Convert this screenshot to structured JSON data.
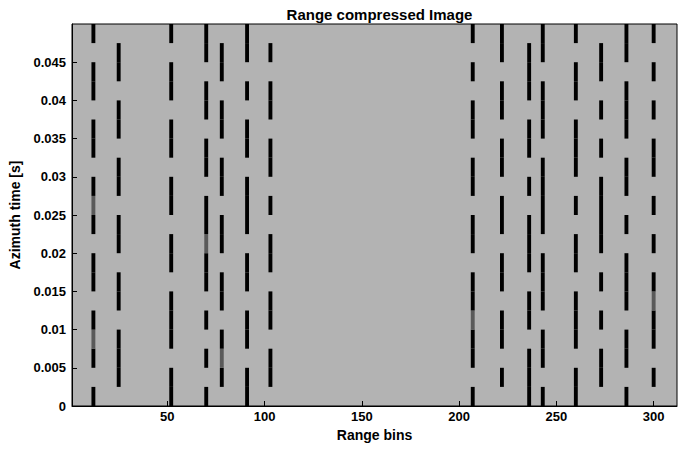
{
  "chart_data": {
    "type": "heatmap",
    "title": "Range compressed Image",
    "xlabel": "Range bins",
    "ylabel": "Azimuth time [s]",
    "xlim": [
      1,
      312
    ],
    "xticks": [
      50,
      100,
      150,
      200,
      250,
      300
    ],
    "ylim": [
      0,
      0.05
    ],
    "yticks": [
      0,
      0.005,
      0.01,
      0.015,
      0.02,
      0.025,
      0.03,
      0.035,
      0.04,
      0.045
    ],
    "x": [
      12,
      25,
      52,
      70,
      78,
      91,
      103,
      207,
      222,
      236,
      243,
      260,
      273,
      286,
      300
    ],
    "y": [
      0,
      0.0025,
      0.005,
      0.0075,
      0.01,
      0.0125,
      0.015,
      0.0175,
      0.02,
      0.0225,
      0.025,
      0.0275,
      0.03,
      0.0325,
      0.035,
      0.0375,
      0.04,
      0.0425,
      0.045,
      0.0475
    ],
    "values": [
      [
        1,
        0,
        1,
        1,
        0,
        1,
        0,
        1,
        0,
        1,
        1,
        1,
        0,
        1,
        0
      ],
      [
        0,
        1,
        1,
        0,
        1,
        1,
        1,
        0,
        1,
        1,
        0,
        1,
        1,
        0,
        1
      ],
      [
        1,
        1,
        0,
        1,
        0.5,
        0,
        1,
        1,
        0,
        1,
        1,
        0,
        1,
        1,
        0
      ],
      [
        0.5,
        1,
        1,
        0,
        1,
        1,
        0,
        1,
        1,
        0,
        1,
        1,
        0,
        1,
        1
      ],
      [
        1,
        0,
        1,
        1,
        0,
        1,
        1,
        0.5,
        1,
        1,
        0,
        1,
        1,
        0,
        1
      ],
      [
        0,
        1,
        1,
        0,
        1,
        0,
        1,
        1,
        0,
        1,
        1,
        1,
        0,
        1,
        0.5
      ],
      [
        1,
        1,
        0,
        1,
        1,
        1,
        0,
        1,
        1,
        0,
        1,
        0,
        1,
        1,
        1
      ],
      [
        1,
        0,
        1,
        1,
        0,
        1,
        1,
        0,
        1,
        1,
        1,
        1,
        0,
        1,
        0
      ],
      [
        0,
        1,
        1,
        0.5,
        1,
        0,
        1,
        1,
        0,
        1,
        0,
        1,
        1,
        0,
        1
      ],
      [
        1,
        1,
        0,
        1,
        1,
        1,
        0,
        1,
        1,
        1,
        1,
        0,
        1,
        1,
        0
      ],
      [
        0.5,
        0,
        1,
        1,
        0,
        1,
        1,
        0,
        1,
        0,
        1,
        1,
        1,
        0,
        1
      ],
      [
        1,
        1,
        1,
        0,
        1,
        1,
        0,
        1,
        0,
        1,
        1,
        0,
        1,
        1,
        0
      ],
      [
        0,
        1,
        0,
        1,
        1,
        0,
        1,
        1,
        1,
        0,
        1,
        1,
        0,
        1,
        1
      ],
      [
        1,
        0,
        1,
        1,
        0,
        1,
        1,
        0,
        1,
        1,
        0,
        1,
        1,
        0,
        1
      ],
      [
        1,
        1,
        1,
        0,
        1,
        1,
        0,
        1,
        0,
        1,
        1,
        1,
        0,
        1,
        0
      ],
      [
        0,
        1,
        0,
        1,
        1,
        0,
        1,
        1,
        1,
        0,
        1,
        0,
        1,
        1,
        1
      ],
      [
        1,
        0,
        1,
        1,
        0,
        1,
        1,
        0,
        1,
        1,
        1,
        1,
        0,
        1,
        0
      ],
      [
        1,
        1,
        1,
        0,
        1,
        0,
        0,
        1,
        0,
        1,
        0,
        1,
        1,
        0,
        1
      ],
      [
        0,
        1,
        0,
        1,
        1,
        1,
        1,
        0,
        1,
        1,
        1,
        0,
        1,
        1,
        0
      ],
      [
        1,
        0,
        1,
        1,
        0,
        1,
        0,
        1,
        1,
        0,
        1,
        1,
        0,
        1,
        1
      ]
    ]
  }
}
